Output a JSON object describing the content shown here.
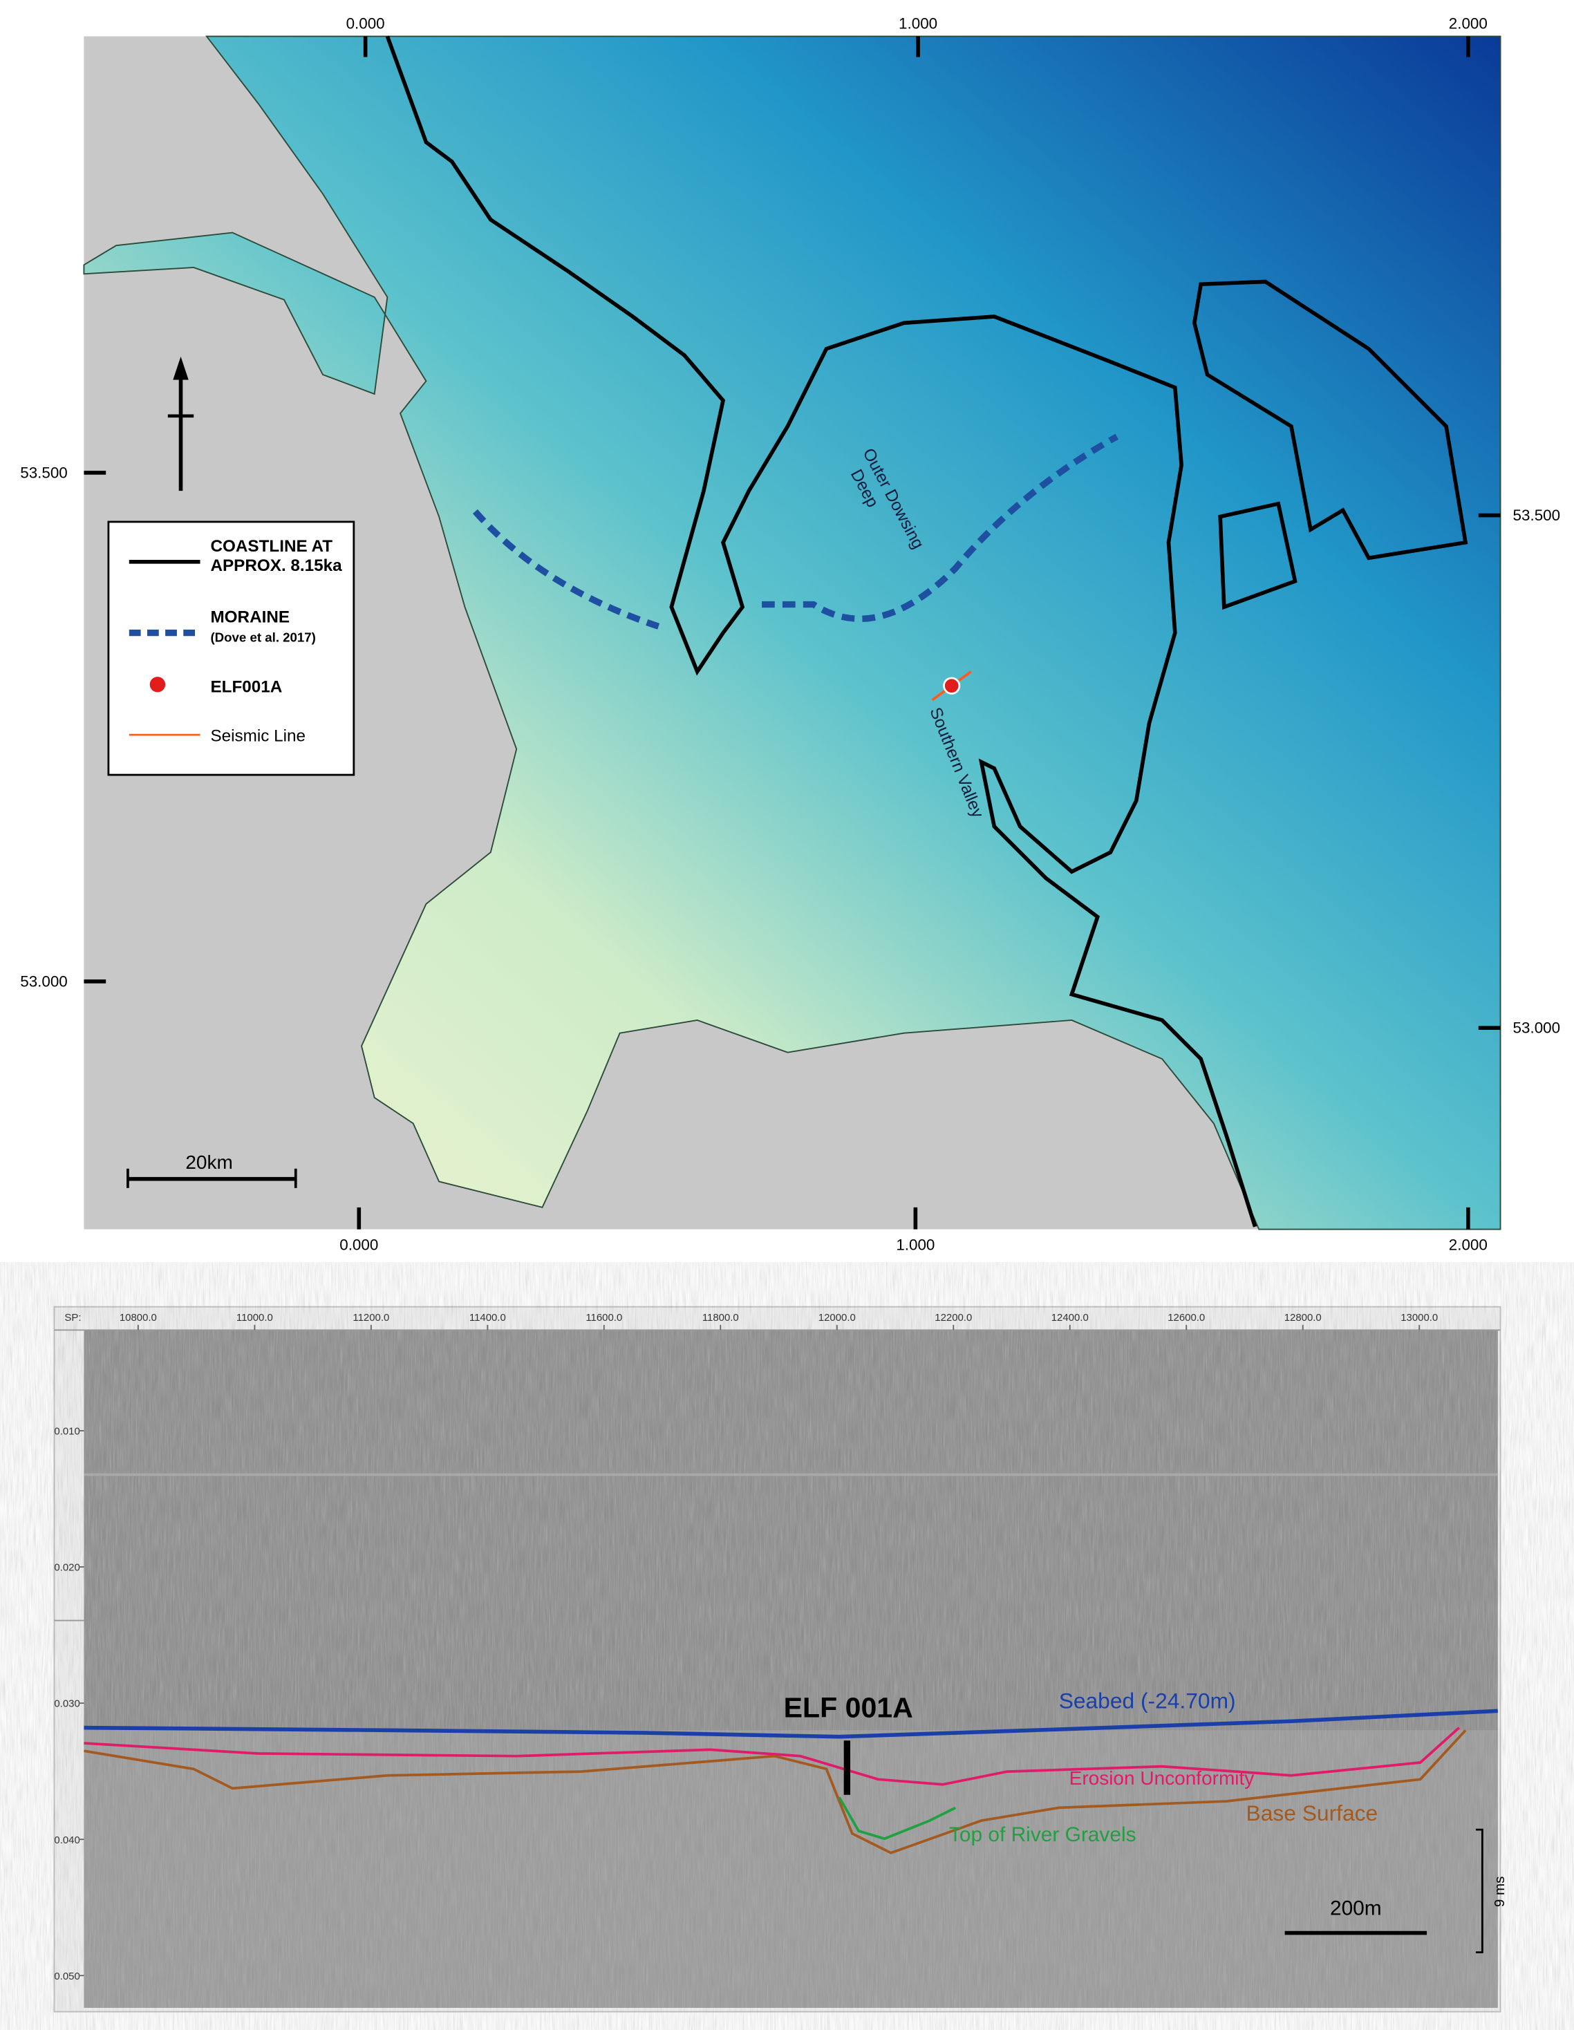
{
  "map": {
    "top_ticks": [
      "0.000",
      "1.000",
      "2.000"
    ],
    "bottom_ticks": [
      "0.000",
      "1.000",
      "2.000"
    ],
    "left_ticks": [
      "53.500",
      "53.000"
    ],
    "right_ticks": [
      "53.500",
      "53.000"
    ],
    "legend": {
      "coastline": [
        "COASTLINE AT",
        "APPROX. 8.15ka"
      ],
      "moraine": "MORAINE",
      "moraine_source": "(Dove et al. 2017)",
      "site": "ELF001A",
      "seismic_line": "Seismic Line"
    },
    "annotations": {
      "deep": [
        "Outer Dowsing",
        "Deep"
      ],
      "valley": "Southern Valley"
    },
    "scale_bar": "20km"
  },
  "seismic": {
    "sp_prefix": "SP:",
    "sp_ticks": [
      "10800.0",
      "11000.0",
      "11200.0",
      "11400.0",
      "11600.0",
      "11800.0",
      "12000.0",
      "12200.0",
      "12400.0",
      "12600.0",
      "12800.0",
      "13000.0"
    ],
    "time_ticks": [
      "0.010",
      "0.020",
      "0.030",
      "0.040",
      "0.050"
    ],
    "site": "ELF 001A",
    "seabed": "Seabed (-24.70m)",
    "erosion": "Erosion Unconformity",
    "base": "Base Surface",
    "gravels": "Top of River Gravels",
    "scale_bar": "200m",
    "vertical_scale": "9 ms"
  }
}
